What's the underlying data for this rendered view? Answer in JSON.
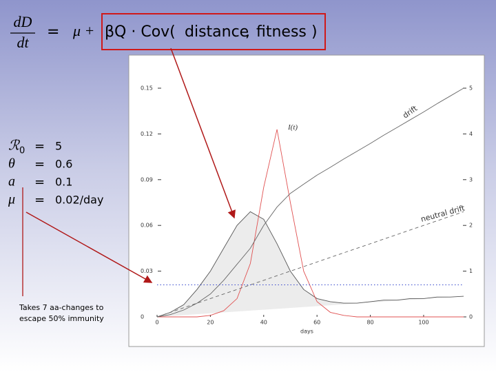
{
  "equation": {
    "numerator": "dD",
    "denominator": "dt",
    "equals": "=",
    "mu_plus": "μ +",
    "cov_term": "βQ · Cov(",
    "arg1": "distance",
    "comma": ",",
    "arg2": "fitness",
    "close": ")"
  },
  "parameters": [
    {
      "symbol": "ℛ",
      "subscript": "0",
      "equals": "=",
      "value": "5"
    },
    {
      "symbol": "θ",
      "equals": "=",
      "value": "0.6"
    },
    {
      "symbol": "a",
      "equals": "=",
      "value": "0.1"
    },
    {
      "symbol": "μ",
      "equals": "=",
      "value": "0.02/day"
    }
  ],
  "note": [
    "Takes 7 aa-changes to",
    "escape 50% immunity"
  ],
  "chart_data": {
    "type": "line",
    "xlabel": "days",
    "x": [
      0,
      5,
      10,
      15,
      20,
      25,
      30,
      35,
      40,
      45,
      50,
      55,
      60,
      65,
      70,
      75,
      80,
      85,
      90,
      95,
      100,
      105,
      110,
      115
    ],
    "xlim": [
      0,
      115
    ],
    "xticks": [
      0,
      20,
      40,
      60,
      80,
      100
    ],
    "ylim": [
      0,
      0.15
    ],
    "yticks": [
      0,
      0.03,
      0.06,
      0.09,
      0.12,
      0.15
    ],
    "y2lim": [
      0,
      5
    ],
    "y2ticks": [
      0,
      1,
      2,
      3,
      4,
      5
    ],
    "series": [
      {
        "color": "#555555",
        "fill": "#ececec",
        "values": [
          0,
          0.003,
          0.008,
          0.018,
          0.03,
          0.045,
          0.06,
          0.069,
          0.064,
          0.048,
          0.03,
          0.018,
          0.012,
          0.01,
          0.009,
          0.009,
          0.01,
          0.011,
          0.011,
          0.012,
          0.012,
          0.013,
          0.013,
          0.0135
        ]
      },
      {
        "name": "I(t)",
        "color": "#e05050",
        "values": [
          0,
          0,
          0,
          0,
          0.001,
          0.004,
          0.012,
          0.035,
          0.085,
          0.123,
          0.075,
          0.03,
          0.01,
          0.003,
          0.001,
          0,
          0,
          0,
          0,
          0,
          0,
          0,
          0,
          0
        ]
      },
      {
        "name": "drift",
        "color": "#666666",
        "axis": "y2",
        "values": [
          0,
          0.05,
          0.15,
          0.3,
          0.5,
          0.8,
          1.15,
          1.5,
          2.0,
          2.4,
          2.7,
          2.9,
          3.1,
          3.27,
          3.45,
          3.62,
          3.79,
          3.97,
          4.14,
          4.31,
          4.48,
          4.66,
          4.83,
          5.0
        ]
      },
      {
        "name": "neutral drift",
        "color": "#666666",
        "axis": "y2",
        "dash": "dashed",
        "values": [
          0,
          0.1,
          0.2,
          0.3,
          0.4,
          0.5,
          0.6,
          0.7,
          0.8,
          0.9,
          1.0,
          1.1,
          1.2,
          1.3,
          1.4,
          1.5,
          1.6,
          1.7,
          1.8,
          1.9,
          2.0,
          2.1,
          2.2,
          2.3
        ]
      },
      {
        "color": "#3344cc",
        "axis": "y2",
        "dash": "dotted",
        "values": [
          0.7,
          0.7,
          0.7,
          0.7,
          0.7,
          0.7,
          0.7,
          0.7,
          0.7,
          0.7,
          0.7,
          0.7,
          0.7,
          0.7,
          0.7,
          0.7,
          0.7,
          0.7,
          0.7,
          0.7,
          0.7,
          0.7,
          0.7,
          0.7
        ]
      }
    ]
  }
}
